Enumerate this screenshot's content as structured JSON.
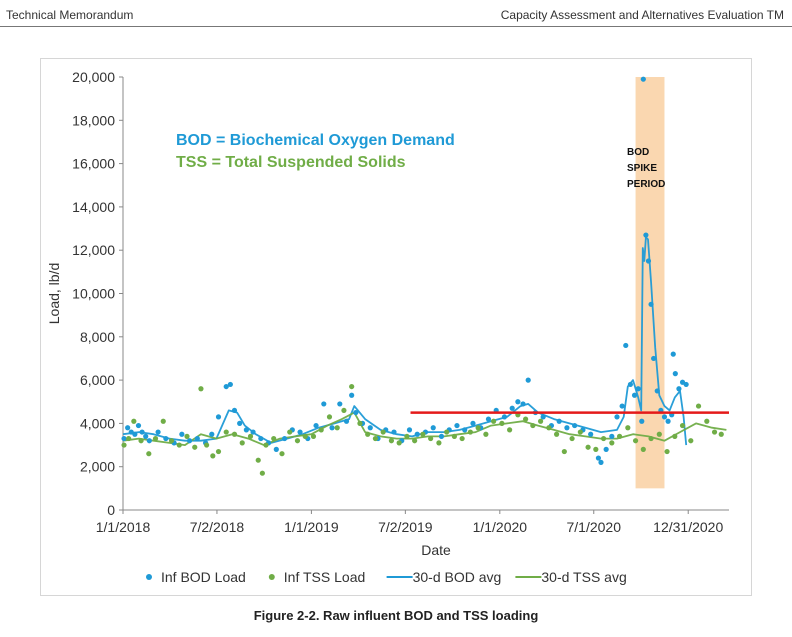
{
  "header": {
    "left": "Technical Memorandum",
    "right": "Capacity Assessment and Alternatives Evaluation TM"
  },
  "caption": "Figure 2-2. Raw influent BOD and TSS loading",
  "annotations": {
    "bod_def": "BOD = Biochemical Oxygen Demand",
    "tss_def": "TSS = Total Suspended Solids",
    "spike_lines": [
      "BOD",
      "SPIKE",
      "PERIOD"
    ]
  },
  "colors": {
    "bod": "#1f9ad6",
    "tss": "#70ad47",
    "threshold": "#e41a1a",
    "spike_band": "#fad7b0",
    "axis": "#888888",
    "text": "#333333"
  },
  "chart_data": {
    "type": "scatter",
    "xlabel": "Date",
    "ylabel": "Load, lb/d",
    "xlim": [
      "2018-01-01",
      "2021-03-20"
    ],
    "ylim": [
      0,
      20000
    ],
    "x_ticks": [
      "1/1/2018",
      "7/2/2018",
      "1/1/2019",
      "7/2/2019",
      "1/1/2020",
      "7/1/2020",
      "12/31/2020"
    ],
    "x_tick_dates": [
      "2018-01-01",
      "2018-07-02",
      "2019-01-01",
      "2019-07-02",
      "2020-01-01",
      "2020-07-01",
      "2020-12-31"
    ],
    "y_ticks": [
      "0",
      "2,000",
      "4,000",
      "6,000",
      "8,000",
      "10,000",
      "12,000",
      "14,000",
      "16,000",
      "18,000",
      "20,000"
    ],
    "y_tick_values": [
      0,
      2000,
      4000,
      6000,
      8000,
      10000,
      12000,
      14000,
      16000,
      18000,
      20000
    ],
    "grid": false,
    "legend_position": "bottom",
    "threshold": {
      "value": 4500,
      "start": "2019-07-12",
      "end": "2021-03-20"
    },
    "spike_period": {
      "start": "2020-09-20",
      "end": "2020-11-15"
    },
    "series": [
      {
        "name": "Inf BOD Load",
        "kind": "points",
        "color": "#1f9ad6",
        "x": [
          "2018-01-03",
          "2018-01-10",
          "2018-01-17",
          "2018-01-24",
          "2018-01-31",
          "2018-02-07",
          "2018-02-14",
          "2018-02-21",
          "2018-03-10",
          "2018-03-25",
          "2018-04-10",
          "2018-04-25",
          "2018-05-10",
          "2018-05-25",
          "2018-06-10",
          "2018-06-22",
          "2018-07-05",
          "2018-07-20",
          "2018-07-28",
          "2018-08-05",
          "2018-08-15",
          "2018-08-28",
          "2018-09-10",
          "2018-09-25",
          "2018-10-10",
          "2018-10-25",
          "2018-11-10",
          "2018-11-25",
          "2018-12-10",
          "2018-12-25",
          "2019-01-10",
          "2019-01-25",
          "2019-02-10",
          "2019-02-25",
          "2019-03-10",
          "2019-03-20",
          "2019-03-28",
          "2019-04-10",
          "2019-04-25",
          "2019-05-10",
          "2019-05-25",
          "2019-06-10",
          "2019-06-25",
          "2019-07-10",
          "2019-07-25",
          "2019-08-10",
          "2019-08-25",
          "2019-09-10",
          "2019-09-25",
          "2019-10-10",
          "2019-10-25",
          "2019-11-10",
          "2019-11-25",
          "2019-12-10",
          "2019-12-25",
          "2020-01-10",
          "2020-01-25",
          "2020-02-05",
          "2020-02-15",
          "2020-02-25",
          "2020-03-10",
          "2020-03-25",
          "2020-04-10",
          "2020-04-25",
          "2020-05-10",
          "2020-05-25",
          "2020-06-10",
          "2020-06-25",
          "2020-07-10",
          "2020-07-15",
          "2020-07-25",
          "2020-08-05",
          "2020-08-15",
          "2020-08-25",
          "2020-09-01",
          "2020-09-10",
          "2020-09-18",
          "2020-09-25",
          "2020-10-02",
          "2020-10-05",
          "2020-10-10",
          "2020-10-15",
          "2020-10-20",
          "2020-10-25",
          "2020-11-01",
          "2020-11-08",
          "2020-11-15",
          "2020-11-22",
          "2020-11-29",
          "2020-12-02",
          "2020-12-06",
          "2020-12-13",
          "2020-12-20",
          "2020-12-27"
        ],
        "y": [
          3300,
          3800,
          3600,
          3500,
          3900,
          3600,
          3400,
          3200,
          3600,
          3300,
          3100,
          3500,
          3200,
          3300,
          3100,
          3500,
          4300,
          5700,
          5800,
          4600,
          4000,
          3700,
          3600,
          3300,
          3100,
          2800,
          3300,
          3700,
          3600,
          3300,
          3900,
          4900,
          3800,
          4900,
          4100,
          5300,
          4500,
          4000,
          3800,
          3300,
          3700,
          3600,
          3200,
          3700,
          3500,
          3600,
          3800,
          3400,
          3700,
          3900,
          3700,
          4000,
          3800,
          4200,
          4600,
          4300,
          4700,
          5000,
          4900,
          6000,
          4500,
          4300,
          3900,
          4100,
          3800,
          3900,
          3700,
          3500,
          2400,
          2200,
          2800,
          3400,
          4300,
          4800,
          7600,
          5800,
          5300,
          5600,
          4100,
          19900,
          12700,
          11500,
          9500,
          7000,
          5500,
          4600,
          4300,
          4100,
          4400,
          7200,
          6300,
          5600,
          5900,
          5800
        ]
      },
      {
        "name": "Inf TSS Load",
        "kind": "points",
        "color": "#70ad47",
        "x": [
          "2018-01-03",
          "2018-01-12",
          "2018-01-22",
          "2018-02-05",
          "2018-02-20",
          "2018-03-05",
          "2018-03-20",
          "2018-04-05",
          "2018-04-20",
          "2018-05-05",
          "2018-05-20",
          "2018-06-01",
          "2018-06-12",
          "2018-06-24",
          "2018-07-05",
          "2018-07-20",
          "2018-08-05",
          "2018-08-20",
          "2018-09-05",
          "2018-09-20",
          "2018-09-28",
          "2018-10-05",
          "2018-10-20",
          "2018-11-05",
          "2018-11-20",
          "2018-12-05",
          "2018-12-20",
          "2019-01-05",
          "2019-01-20",
          "2019-02-05",
          "2019-02-20",
          "2019-03-05",
          "2019-03-20",
          "2019-04-05",
          "2019-04-20",
          "2019-05-05",
          "2019-05-20",
          "2019-06-05",
          "2019-06-20",
          "2019-07-05",
          "2019-07-20",
          "2019-08-05",
          "2019-08-20",
          "2019-09-05",
          "2019-09-20",
          "2019-10-05",
          "2019-10-20",
          "2019-11-05",
          "2019-11-20",
          "2019-12-05",
          "2019-12-20",
          "2020-01-05",
          "2020-01-20",
          "2020-02-05",
          "2020-02-20",
          "2020-03-05",
          "2020-03-20",
          "2020-04-05",
          "2020-04-20",
          "2020-05-05",
          "2020-05-20",
          "2020-06-05",
          "2020-06-20",
          "2020-07-05",
          "2020-07-20",
          "2020-08-05",
          "2020-08-20",
          "2020-09-05",
          "2020-09-20",
          "2020-10-05",
          "2020-10-20",
          "2020-11-05",
          "2020-11-20",
          "2020-12-05",
          "2020-12-20",
          "2021-01-05",
          "2021-01-20",
          "2021-02-05",
          "2021-02-20",
          "2021-03-05"
        ],
        "y": [
          3000,
          3300,
          4100,
          3200,
          2600,
          3300,
          4100,
          3200,
          3000,
          3400,
          2900,
          5600,
          3000,
          2500,
          2700,
          3600,
          3500,
          3100,
          3400,
          2300,
          1700,
          3000,
          3300,
          2600,
          3600,
          3200,
          3400,
          3400,
          3700,
          4300,
          3800,
          4600,
          5700,
          4000,
          3500,
          3300,
          3600,
          3200,
          3100,
          3400,
          3200,
          3500,
          3300,
          3100,
          3600,
          3400,
          3300,
          3600,
          3800,
          3500,
          4100,
          4000,
          3700,
          4400,
          4200,
          3900,
          4100,
          3800,
          3500,
          2700,
          3300,
          3600,
          2900,
          2800,
          3300,
          3100,
          3400,
          3800,
          3200,
          2800,
          3300,
          3500,
          2700,
          3400,
          3900,
          3200,
          4800,
          4100,
          3600,
          3500
        ]
      },
      {
        "name": "30-d BOD avg",
        "kind": "line",
        "color": "#1f9ad6",
        "x": [
          "2018-01-01",
          "2018-02-01",
          "2018-03-01",
          "2018-04-01",
          "2018-05-01",
          "2018-06-01",
          "2018-07-01",
          "2018-07-25",
          "2018-08-10",
          "2018-08-25",
          "2018-09-15",
          "2018-10-15",
          "2018-11-15",
          "2018-12-15",
          "2019-01-15",
          "2019-02-15",
          "2019-03-15",
          "2019-03-25",
          "2019-04-15",
          "2019-05-15",
          "2019-06-15",
          "2019-07-15",
          "2019-08-15",
          "2019-09-15",
          "2019-10-15",
          "2019-11-15",
          "2019-12-15",
          "2020-01-15",
          "2020-02-10",
          "2020-02-25",
          "2020-03-15",
          "2020-04-15",
          "2020-05-15",
          "2020-06-15",
          "2020-07-15",
          "2020-08-15",
          "2020-08-28",
          "2020-09-05",
          "2020-09-15",
          "2020-09-25",
          "2020-10-01",
          "2020-10-04",
          "2020-10-07",
          "2020-10-10",
          "2020-10-14",
          "2020-10-20",
          "2020-10-28",
          "2020-11-05",
          "2020-11-15",
          "2020-11-25",
          "2020-12-05",
          "2020-12-15",
          "2020-12-22",
          "2020-12-27"
        ],
        "y": [
          3500,
          3600,
          3500,
          3300,
          3200,
          3200,
          3300,
          4600,
          4500,
          3900,
          3500,
          3100,
          3300,
          3500,
          3800,
          4000,
          4200,
          4800,
          4200,
          3700,
          3500,
          3400,
          3600,
          3600,
          3700,
          3900,
          4100,
          4300,
          4800,
          4900,
          4500,
          4200,
          4000,
          3800,
          3600,
          3700,
          4300,
          5700,
          6000,
          5200,
          4600,
          12100,
          11500,
          12600,
          12500,
          10500,
          7500,
          5300,
          4800,
          4600,
          5200,
          5500,
          4300,
          3000
        ]
      },
      {
        "name": "30-d TSS avg",
        "kind": "line",
        "color": "#70ad47",
        "x": [
          "2018-01-01",
          "2018-02-01",
          "2018-03-01",
          "2018-04-01",
          "2018-05-01",
          "2018-06-01",
          "2018-07-01",
          "2018-08-01",
          "2018-09-01",
          "2018-10-01",
          "2018-11-01",
          "2018-12-01",
          "2019-01-01",
          "2019-02-01",
          "2019-03-01",
          "2019-03-25",
          "2019-04-15",
          "2019-05-15",
          "2019-06-15",
          "2019-07-15",
          "2019-08-15",
          "2019-09-15",
          "2019-10-15",
          "2019-11-15",
          "2019-12-15",
          "2020-01-15",
          "2020-02-15",
          "2020-03-15",
          "2020-04-15",
          "2020-05-15",
          "2020-06-15",
          "2020-07-15",
          "2020-08-15",
          "2020-09-15",
          "2020-10-15",
          "2020-11-15",
          "2020-12-15",
          "2021-01-15",
          "2021-02-15",
          "2021-03-15"
        ],
        "y": [
          3200,
          3300,
          3200,
          3100,
          3000,
          3500,
          3300,
          3500,
          3300,
          3000,
          3300,
          3400,
          3500,
          3900,
          4200,
          4500,
          3600,
          3400,
          3300,
          3300,
          3400,
          3400,
          3500,
          3600,
          3900,
          4000,
          4100,
          3900,
          3700,
          3500,
          3400,
          3300,
          3300,
          3500,
          3400,
          3200,
          3600,
          4000,
          3800,
          3700
        ]
      }
    ]
  }
}
